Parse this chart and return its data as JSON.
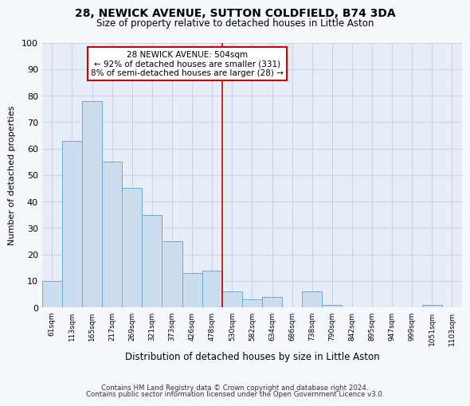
{
  "title": "28, NEWICK AVENUE, SUTTON COLDFIELD, B74 3DA",
  "subtitle": "Size of property relative to detached houses in Little Aston",
  "xlabel": "Distribution of detached houses by size in Little Aston",
  "ylabel": "Number of detached properties",
  "bar_labels": [
    "61sqm",
    "113sqm",
    "165sqm",
    "217sqm",
    "269sqm",
    "321sqm",
    "373sqm",
    "426sqm",
    "478sqm",
    "530sqm",
    "582sqm",
    "634sqm",
    "686sqm",
    "738sqm",
    "790sqm",
    "842sqm",
    "895sqm",
    "947sqm",
    "999sqm",
    "1051sqm",
    "1103sqm"
  ],
  "bar_values": [
    10,
    63,
    78,
    55,
    45,
    35,
    25,
    13,
    14,
    6,
    3,
    4,
    0,
    6,
    1,
    0,
    0,
    0,
    0,
    1,
    0
  ],
  "bar_color": "#ccddf0",
  "bar_edge_color": "#6aaad4",
  "ylim": [
    0,
    100
  ],
  "annotation_box_text": "28 NEWICK AVENUE: 504sqm\n← 92% of detached houses are smaller (331)\n8% of semi-detached houses are larger (28) →",
  "annotation_box_facecolor": "white",
  "annotation_box_edgecolor": "#cc0000",
  "vline_color": "#cc0000",
  "vline_x": 8.5,
  "footer_line1": "Contains HM Land Registry data © Crown copyright and database right 2024.",
  "footer_line2": "Contains public sector information licensed under the Open Government Licence v3.0.",
  "plot_bg_color": "#e8eef8",
  "fig_bg_color": "#f5f8fd",
  "grid_color": "#c8d4e8"
}
